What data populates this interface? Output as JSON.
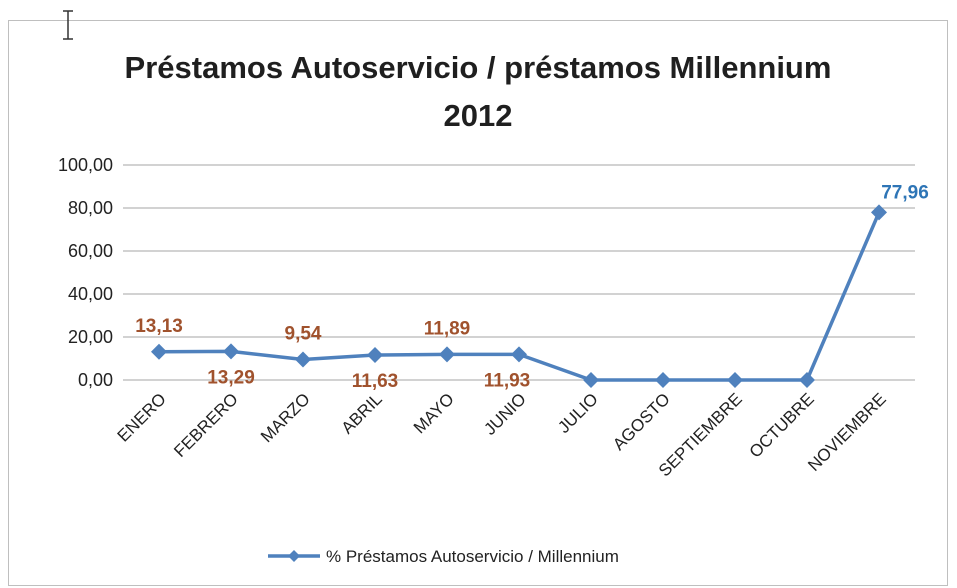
{
  "chart_data": {
    "type": "line",
    "title_line1": "Préstamos Autoservicio / préstamos Millennium",
    "title_line2": "2012",
    "categories": [
      "ENERO",
      "FEBRERO",
      "MARZO",
      "ABRIL",
      "MAYO",
      "JUNIO",
      "JULIO",
      "AGOSTO",
      "SEPTIEMBRE",
      "OCTUBRE",
      "NOVIEMBRE"
    ],
    "series": [
      {
        "name": "% Préstamos Autoservicio / Millennium",
        "values": [
          13.13,
          13.29,
          9.54,
          11.63,
          11.89,
          11.93,
          0,
          0,
          0,
          0,
          77.96
        ],
        "data_labels": [
          "13,13",
          "13,29",
          "9,54",
          "11,63",
          "11,89",
          "11,93",
          null,
          null,
          null,
          null,
          "77,96"
        ]
      }
    ],
    "y_ticks": [
      "0,00",
      "20,00",
      "40,00",
      "60,00",
      "80,00",
      "100,00"
    ],
    "ylim": [
      0,
      100
    ],
    "grid": true,
    "legend_position": "bottom",
    "colors": {
      "line": "#4f81bd",
      "label_brown": "#a0522d",
      "label_blue": "#2e75b6",
      "grid": "#a6a6a6"
    }
  }
}
